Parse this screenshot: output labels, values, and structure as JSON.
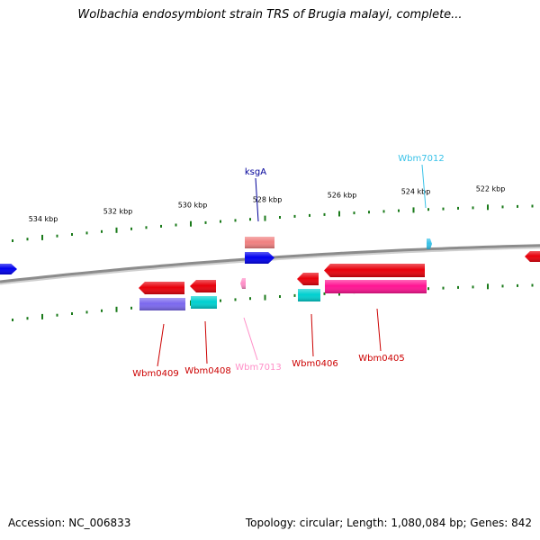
{
  "title": "Wolbachia endosymbiont strain TRS of Brugia malayi, complete...",
  "footer": {
    "accession": "Accession: NC_006833",
    "topology": "Topology: circular; Length: 1,080,084 bp; Genes: 842"
  },
  "colors": {
    "tick": "#1a7a1a",
    "backbone": "#8c8c8c",
    "red": "#e8000b",
    "blue": "#0000ee",
    "salmon": "#f08080",
    "cyan": "#00d0d0",
    "violet": "#7b68ee",
    "magenta": "#ff1493",
    "pink": "#ff8fc8",
    "skyblue": "#39c2e8",
    "label_red": "#cc0000",
    "label_navy": "#000099",
    "label_pink": "#ff8fc8",
    "label_sky": "#39c2e8"
  },
  "scale": {
    "labels": [
      "534 kbp",
      "532 kbp",
      "530 kbp",
      "528 kbp",
      "526 kbp",
      "524 kbp",
      "522 kbp"
    ]
  },
  "genes": [
    {
      "name": "ksgA",
      "color_key": "label_navy"
    },
    {
      "name": "Wbm7012",
      "color_key": "label_sky"
    },
    {
      "name": "Wbm0409",
      "color_key": "label_red"
    },
    {
      "name": "Wbm0408",
      "color_key": "label_red"
    },
    {
      "name": "Wbm7013",
      "color_key": "label_pink"
    },
    {
      "name": "Wbm0406",
      "color_key": "label_red"
    },
    {
      "name": "Wbm0405",
      "color_key": "label_red"
    }
  ]
}
